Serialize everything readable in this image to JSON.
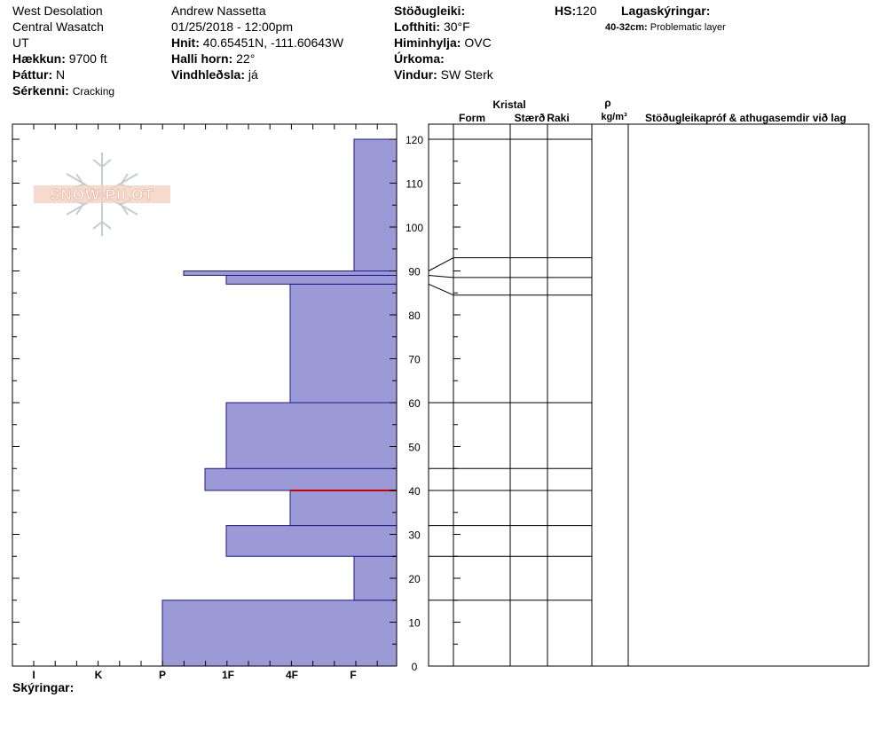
{
  "header": {
    "location": "West Desolation",
    "range": "Central Wasatch",
    "state": "UT",
    "elevation_label": "Hækkun:",
    "elevation_value": "9700 ft",
    "aspect_label": "Þáttur:",
    "aspect_value": "N",
    "features_label": "Sérkenni:",
    "features_value": "Cracking",
    "observer": "Andrew Nassetta",
    "datetime": "01/25/2018 - 12:00pm",
    "coords_label": "Hnit:",
    "coords_value": "40.65451N, -111.60643W",
    "slope_label": "Halli horn:",
    "slope_value": "22°",
    "wind_loading_label": "Vindhleðsla:",
    "wind_loading_value": "já",
    "stability_label": "Stöðugleiki:",
    "stability_value": "",
    "air_temp_label": "Lofthiti:",
    "air_temp_value": "30°F",
    "sky_label": "Himinhylja:",
    "sky_value": "OVC",
    "precip_label": "Úrkoma:",
    "precip_value": "",
    "wind_label": "Vindur:",
    "wind_value": "SW Sterk",
    "hs_label": "HS:",
    "hs_value": "120",
    "layer_notes_label": "Lagaskýringar:",
    "layer_note_range": "40-32cm:",
    "layer_note_text": "Problematic layer",
    "legend_label": "Skýringar:"
  },
  "logo": {
    "text": "SNOW PILOT"
  },
  "columns": {
    "crystal": "Kristal",
    "form": "Form",
    "size": "Stærð",
    "moisture": "Raki",
    "rho": "ρ",
    "density_unit": "kg/m³",
    "tests": "Stöðugleikapróf & athugasemdir við lag"
  },
  "chart_data": {
    "type": "bar",
    "orientation": "horizontal",
    "description_axis": "hardness profile",
    "hardness_categories": [
      "I",
      "K",
      "P",
      "1F",
      "4F",
      "F"
    ],
    "y_ticks": [
      0,
      10,
      20,
      30,
      40,
      50,
      60,
      70,
      80,
      90,
      100,
      110,
      120
    ],
    "ylim": [
      0,
      120
    ],
    "layers": [
      {
        "bottom": 0,
        "top": 15,
        "hardness": "P"
      },
      {
        "bottom": 15,
        "top": 25,
        "hardness": "F"
      },
      {
        "bottom": 25,
        "top": 32,
        "hardness": "1F"
      },
      {
        "bottom": 32,
        "top": 40,
        "hardness": "4F"
      },
      {
        "bottom": 40,
        "top": 45,
        "hardness": "1F-"
      },
      {
        "bottom": 45,
        "top": 60,
        "hardness": "1F"
      },
      {
        "bottom": 60,
        "top": 87,
        "hardness": "4F"
      },
      {
        "bottom": 87,
        "top": 89,
        "hardness": "1F"
      },
      {
        "bottom": 89,
        "top": 90,
        "hardness": "P+"
      },
      {
        "bottom": 90,
        "top": 120,
        "hardness": "F"
      }
    ],
    "problem_layer_line": 40,
    "layer_boundaries_right": [
      120,
      93,
      88.5,
      84.5,
      60,
      45,
      40,
      32,
      25,
      15
    ],
    "fill_color": "#9b9ad6",
    "edge_color": "#1a1a8c",
    "problem_color": "#cc0000"
  }
}
